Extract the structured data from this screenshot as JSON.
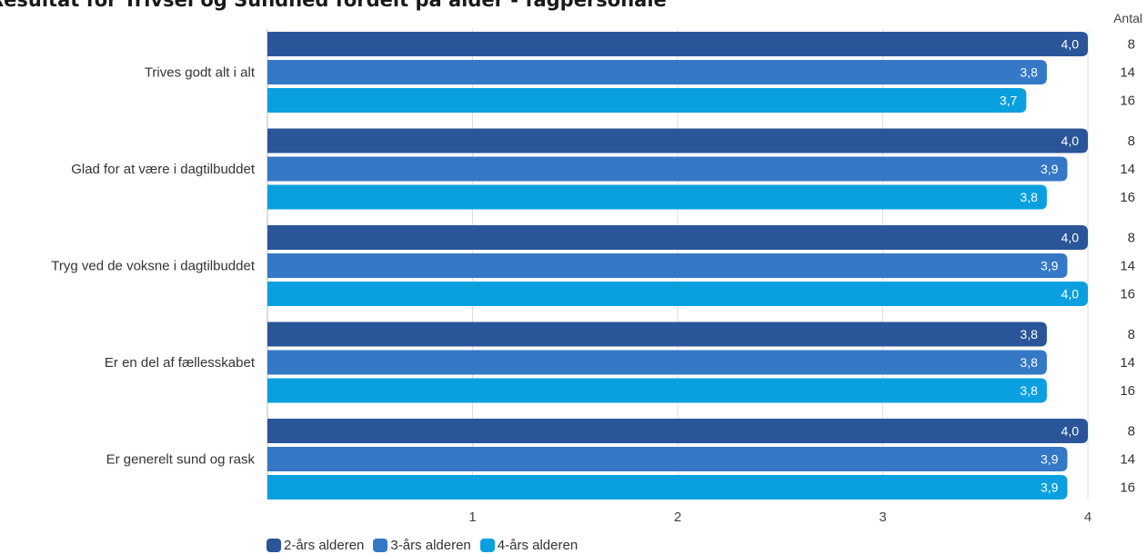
{
  "chart_data": {
    "type": "bar",
    "orientation": "horizontal",
    "title": "Resultat for Trivsel og Sundhed fordelt på alder - fagpersonale",
    "categories": [
      "Trives godt alt i alt",
      "Glad for at være i dagtilbuddet",
      "Tryg ved de voksne i dagtilbuddet",
      "Er en del af fællesskabet",
      "Er generelt sund og rask"
    ],
    "series": [
      {
        "name": "2-års alderen",
        "color": "#2a5599",
        "values": [
          4.0,
          4.0,
          4.0,
          3.8,
          4.0
        ],
        "labels": [
          "4,0",
          "4,0",
          "4,0",
          "3,8",
          "4,0"
        ],
        "counts": [
          "8",
          "8",
          "8",
          "8",
          "8"
        ]
      },
      {
        "name": "3-års alderen",
        "color": "#3478c6",
        "values": [
          3.8,
          3.9,
          3.9,
          3.8,
          3.9
        ],
        "labels": [
          "3,8",
          "3,9",
          "3,9",
          "3,8",
          "3,9"
        ],
        "counts": [
          "14",
          "14",
          "14",
          "14",
          "14"
        ]
      },
      {
        "name": "4-års alderen",
        "color": "#0aa0e0",
        "values": [
          3.7,
          3.8,
          4.0,
          3.8,
          3.9
        ],
        "labels": [
          "3,7",
          "3,8",
          "4,0",
          "3,8",
          "3,9"
        ],
        "counts": [
          "16",
          "16",
          "16",
          "16",
          "16"
        ]
      }
    ],
    "xlim": [
      0,
      4
    ],
    "xticks": [
      1,
      2,
      3,
      4
    ],
    "count_header": "Antal",
    "grid": true,
    "legend_position": "bottom-left"
  }
}
